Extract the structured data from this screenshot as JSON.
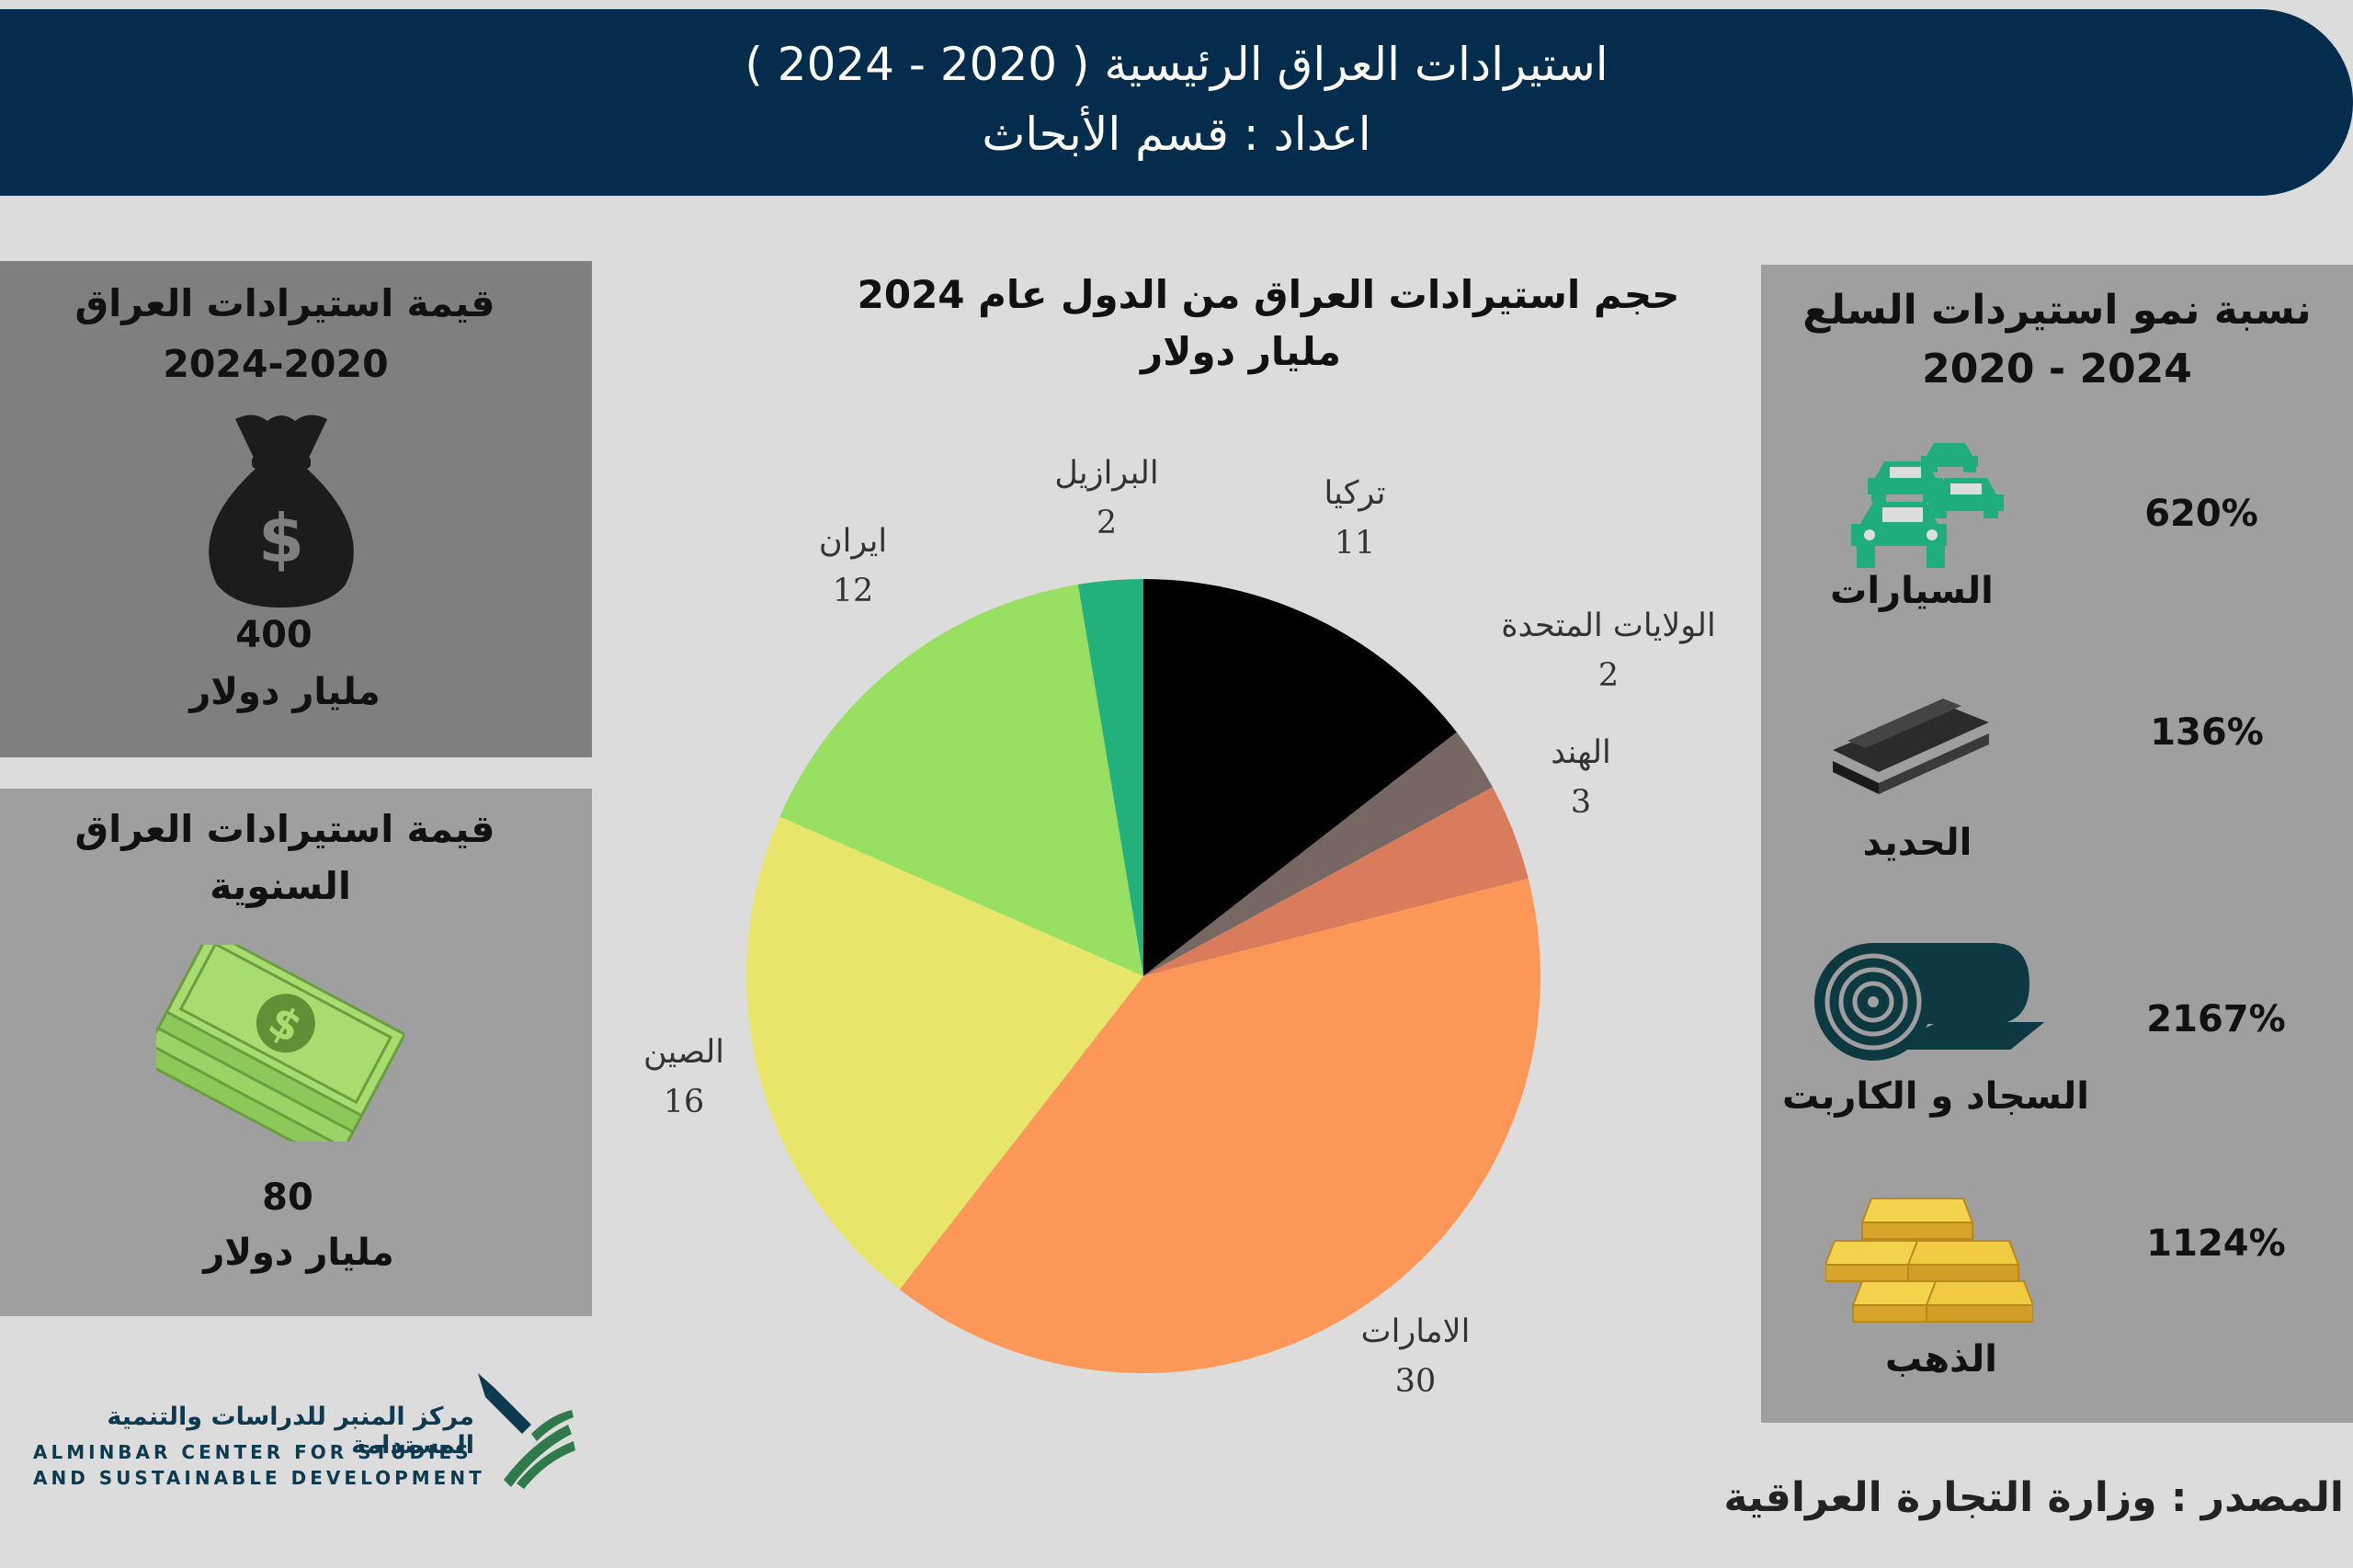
{
  "header": {
    "title": "استيرادات العراق الرئيسية ( 2020 - 2024 )",
    "subtitle": "اعداد : قسم الأبحاث"
  },
  "left_panel_1": {
    "title_line1": "قيمة استيرادات العراق",
    "title_line2": "2024-2020",
    "value": "400",
    "unit": "مليار دولار",
    "icon": "money-bag-icon"
  },
  "left_panel_2": {
    "title_line1": "قيمة استيرادات العراق",
    "title_line2": "السنوية",
    "value": "80",
    "unit": "مليار دولار",
    "icon": "banknotes-icon"
  },
  "right_panel": {
    "title_line1": "نسبة نمو استيردات السلع",
    "title_line2": "2020 - 2024",
    "items": [
      {
        "label": "السيارات",
        "value": "620%",
        "icon": "cars-icon"
      },
      {
        "label": "الحديد",
        "value": "136%",
        "icon": "steel-beams-icon"
      },
      {
        "label": "السجاد و الكاربت",
        "value": "2167%",
        "icon": "carpet-roll-icon"
      },
      {
        "label": "الذهب",
        "value": "1124%",
        "icon": "gold-bars-icon"
      }
    ]
  },
  "chart_data": {
    "type": "pie",
    "title": "حجم استيرادات العراق من الدول عام 2024",
    "subtitle": "مليار دولار",
    "start_angle_deg": 0,
    "direction": "clockwise",
    "slices": [
      {
        "name": "تركيا",
        "value": 11,
        "color": "#000000"
      },
      {
        "name": "الولايات المتحدة",
        "value": 2,
        "color": "#776762"
      },
      {
        "name": "الهند",
        "value": 3,
        "color": "#d97c5c"
      },
      {
        "name": "الامارات",
        "value": 30,
        "color": "#fd9758"
      },
      {
        "name": "الصين",
        "value": 16,
        "color": "#e8e66a"
      },
      {
        "name": "ايران",
        "value": 12,
        "color": "#97e062"
      },
      {
        "name": "البرازيل",
        "value": 2,
        "color": "#22b07d"
      }
    ]
  },
  "footer": {
    "source": "المصدر : وزارة التجارة العراقية",
    "logo_ar": "مركز المنبر للدراسات والتنمية المستدامة",
    "logo_en_line1": "ALMINBAR CENTER FOR STUDIES",
    "logo_en_line2": "AND SUSTAINABLE DEVELOPMENT"
  }
}
